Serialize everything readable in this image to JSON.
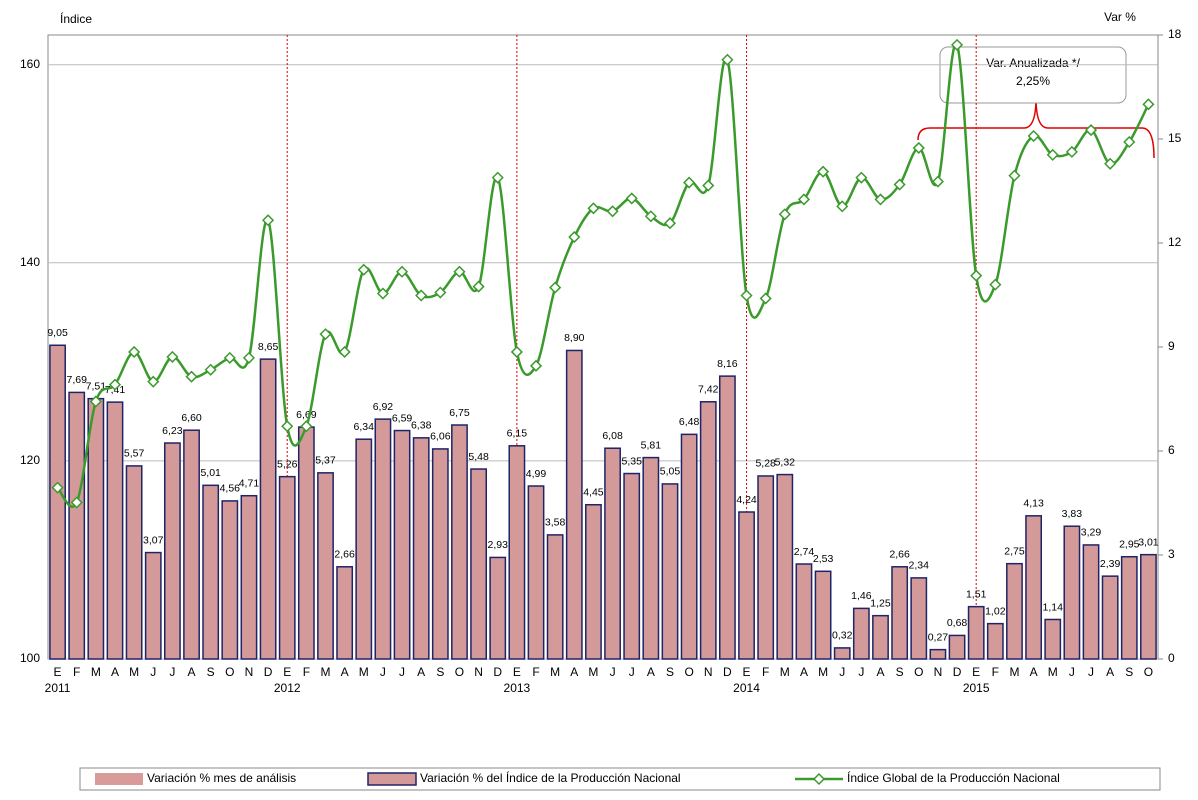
{
  "chart_data": {
    "type": "bar-line",
    "y_label": "Índice",
    "y2_label": "Var %",
    "annotation": [
      "Var. Anualizada */",
      "2,25%"
    ],
    "categories": [
      "E",
      "F",
      "M",
      "A",
      "M",
      "J",
      "J",
      "A",
      "S",
      "O",
      "N",
      "D",
      "E",
      "F",
      "M",
      "A",
      "M",
      "J",
      "J",
      "A",
      "S",
      "O",
      "N",
      "D",
      "E",
      "F",
      "M",
      "A",
      "M",
      "J",
      "J",
      "A",
      "S",
      "O",
      "N",
      "D",
      "E",
      "F",
      "M",
      "A",
      "M",
      "J",
      "J",
      "A",
      "S",
      "O",
      "N",
      "D",
      "E",
      "F",
      "M",
      "A",
      "M",
      "J",
      "J",
      "A",
      "S",
      "O"
    ],
    "years": [
      "2011",
      "2012",
      "2013",
      "2014",
      "2015"
    ],
    "ylim": [
      100,
      163
    ],
    "yticks": [
      100,
      120,
      140,
      160
    ],
    "y2lim": [
      0,
      18
    ],
    "y2ticks": [
      0,
      3,
      6,
      9,
      12,
      15,
      18
    ],
    "grid": true,
    "highlight_legend": {
      "name": "Variación % mes de análisis",
      "color": "#d99a9a"
    },
    "series": [
      {
        "name": "Variación % del Índice de la Producción Nacional",
        "kind": "bar",
        "axis": "y2",
        "color": "#d49a9a",
        "edge": "#1f2466",
        "values": [
          9.05,
          7.69,
          7.51,
          7.41,
          5.57,
          3.07,
          6.23,
          6.6,
          5.01,
          4.56,
          4.71,
          8.65,
          5.26,
          6.69,
          5.37,
          2.66,
          6.34,
          6.92,
          6.59,
          6.38,
          6.06,
          6.75,
          5.48,
          2.93,
          6.15,
          4.99,
          3.58,
          8.9,
          4.45,
          6.08,
          5.35,
          5.81,
          5.05,
          6.48,
          7.42,
          8.16,
          4.24,
          5.28,
          5.32,
          2.74,
          2.53,
          0.32,
          1.46,
          1.25,
          2.66,
          2.34,
          0.27,
          0.68,
          1.51,
          1.02,
          2.75,
          4.13,
          1.14,
          3.83,
          3.29,
          2.39,
          2.95,
          3.01
        ],
        "value_labels": [
          "9,05",
          "7,69",
          "7,51",
          "7,41",
          "5,57",
          "3,07",
          "6,23",
          "6,60",
          "5,01",
          "4,56",
          "4,71",
          "8,65",
          "5,26",
          "6,69",
          "5,37",
          "2,66",
          "6,34",
          "6,92",
          "6,59",
          "6,38",
          "6,06",
          "6,75",
          "5,48",
          "2,93",
          "6,15",
          "4,99",
          "3,58",
          "8,90",
          "4,45",
          "6,08",
          "5,35",
          "5,81",
          "5,05",
          "6,48",
          "7,42",
          "8,16",
          "4,24",
          "5,28",
          "5,32",
          "2,74",
          "2,53",
          "0,32",
          "1,46",
          "1,25",
          "2,66",
          "2,34",
          "0,27",
          "0,68",
          "1,51",
          "1,02",
          "2,75",
          "4,13",
          "1,14",
          "3,83",
          "3,29",
          "2,39",
          "2,95",
          "3,01"
        ]
      },
      {
        "name": "Índice Global de la Producción Nacional",
        "kind": "line",
        "color": "#3a9a2c",
        "values": [
          117.3,
          115.8,
          126.0,
          127.7,
          131.0,
          128.0,
          130.5,
          128.5,
          129.2,
          130.4,
          130.4,
          144.3,
          123.5,
          123.5,
          132.8,
          131.0,
          139.3,
          136.9,
          139.1,
          136.7,
          137.0,
          139.1,
          137.6,
          148.6,
          131.0,
          129.6,
          137.5,
          142.6,
          145.5,
          145.2,
          146.5,
          144.7,
          144.0,
          148.1,
          147.8,
          160.5,
          136.7,
          136.4,
          144.9,
          146.4,
          149.2,
          145.7,
          148.6,
          146.4,
          147.9,
          151.6,
          148.2,
          162.0,
          138.7,
          137.8,
          148.8,
          152.8,
          150.9,
          151.2,
          153.4,
          150.0,
          152.2,
          156.0
        ]
      }
    ]
  }
}
